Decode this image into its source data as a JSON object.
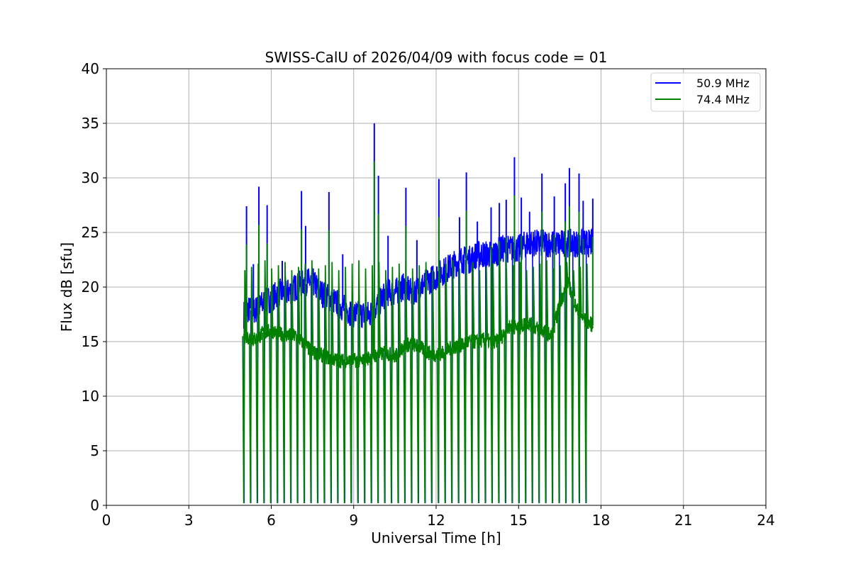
{
  "chart_data": {
    "type": "line",
    "title": "SWISS-CalU of 2026/04/09 with focus code = 01",
    "xlabel": "Universal Time [h]",
    "ylabel": "Flux dB [sfu]",
    "xlim": [
      0,
      24
    ],
    "ylim": [
      0,
      40
    ],
    "xticks": [
      0,
      3,
      6,
      9,
      12,
      15,
      18,
      21,
      24
    ],
    "yticks": [
      0,
      5,
      10,
      15,
      20,
      25,
      30,
      35,
      40
    ],
    "grid": true,
    "legend_position": "top-right",
    "series": [
      {
        "name": "50.9 MHz",
        "color": "#0000ff",
        "x": [
          5.0,
          5.1,
          5.3,
          5.5,
          5.7,
          6.0,
          6.3,
          6.6,
          6.9,
          7.2,
          7.5,
          7.8,
          8.1,
          8.4,
          8.7,
          9.0,
          9.3,
          9.6,
          9.9,
          10.2,
          10.5,
          10.8,
          11.1,
          11.4,
          11.7,
          12.0,
          12.3,
          12.6,
          12.9,
          13.2,
          13.5,
          13.8,
          14.1,
          14.4,
          14.7,
          15.0,
          15.3,
          15.6,
          15.9,
          16.2,
          16.5,
          16.8,
          17.1,
          17.4,
          17.7
        ],
        "values": [
          17.5,
          18.0,
          17.8,
          18.0,
          18.5,
          19.0,
          19.5,
          19.5,
          20.0,
          20.5,
          20.5,
          19.5,
          19.0,
          18.5,
          18.0,
          17.5,
          17.5,
          17.5,
          18.5,
          19.5,
          19.5,
          20.0,
          19.5,
          20.0,
          20.5,
          21.0,
          21.5,
          22.0,
          22.5,
          22.5,
          23.0,
          23.0,
          23.0,
          23.5,
          23.5,
          23.5,
          24.0,
          24.0,
          24.0,
          24.0,
          24.0,
          24.0,
          24.0,
          24.0,
          24.0
        ]
      },
      {
        "name": "74.4 MHz",
        "color": "#008000",
        "x": [
          5.0,
          5.1,
          5.3,
          5.5,
          5.7,
          6.0,
          6.3,
          6.6,
          6.9,
          7.2,
          7.5,
          7.8,
          8.1,
          8.4,
          8.7,
          9.0,
          9.3,
          9.6,
          9.9,
          10.2,
          10.5,
          10.8,
          11.1,
          11.4,
          11.7,
          12.0,
          12.3,
          12.6,
          12.9,
          13.2,
          13.5,
          13.8,
          14.1,
          14.4,
          14.7,
          15.0,
          15.3,
          15.6,
          15.9,
          16.2,
          16.5,
          16.8,
          17.1,
          17.4,
          17.7
        ],
        "values": [
          15.5,
          15.5,
          15.2,
          15.3,
          15.8,
          16.0,
          15.7,
          15.6,
          15.5,
          14.8,
          14.0,
          13.8,
          13.5,
          13.3,
          13.2,
          13.3,
          13.2,
          13.6,
          13.8,
          14.0,
          13.6,
          14.6,
          14.8,
          14.5,
          14.0,
          13.8,
          14.0,
          14.5,
          14.6,
          15.0,
          15.0,
          15.2,
          14.8,
          15.5,
          16.5,
          16.2,
          16.8,
          16.3,
          16.0,
          15.5,
          18.5,
          20.5,
          18.0,
          17.0,
          16.5
        ]
      }
    ],
    "spikes": {
      "description_values_only": true,
      "blue_peaks": [
        {
          "x": 5.1,
          "y": 27.4
        },
        {
          "x": 5.35,
          "y": 22.1
        },
        {
          "x": 5.55,
          "y": 29.2
        },
        {
          "x": 5.85,
          "y": 27.5
        },
        {
          "x": 6.4,
          "y": 22.4
        },
        {
          "x": 7.1,
          "y": 28.8
        },
        {
          "x": 7.25,
          "y": 25.6
        },
        {
          "x": 8.1,
          "y": 28.7
        },
        {
          "x": 8.6,
          "y": 23.0
        },
        {
          "x": 9.75,
          "y": 35.0
        },
        {
          "x": 9.9,
          "y": 30.2
        },
        {
          "x": 10.25,
          "y": 24.7
        },
        {
          "x": 10.9,
          "y": 29.1
        },
        {
          "x": 11.3,
          "y": 24.3
        },
        {
          "x": 12.1,
          "y": 29.9
        },
        {
          "x": 12.85,
          "y": 26.4
        },
        {
          "x": 13.1,
          "y": 30.5
        },
        {
          "x": 13.5,
          "y": 26.0
        },
        {
          "x": 14.0,
          "y": 27.3
        },
        {
          "x": 14.3,
          "y": 27.7
        },
        {
          "x": 14.55,
          "y": 28.0
        },
        {
          "x": 14.85,
          "y": 31.9
        },
        {
          "x": 15.1,
          "y": 28.2
        },
        {
          "x": 15.4,
          "y": 26.9
        },
        {
          "x": 15.85,
          "y": 30.4
        },
        {
          "x": 16.3,
          "y": 28.3
        },
        {
          "x": 16.7,
          "y": 29.5
        },
        {
          "x": 16.85,
          "y": 30.9
        },
        {
          "x": 17.2,
          "y": 30.4
        },
        {
          "x": 17.35,
          "y": 27.9
        },
        {
          "x": 17.7,
          "y": 28.1
        }
      ],
      "green_spike_x_start": 5.0,
      "green_spike_x_end": 17.45,
      "green_spike_count": 52,
      "green_spike_top": 22.0
    },
    "legend": [
      {
        "label": "50.9 MHz",
        "color": "#0000ff"
      },
      {
        "label": "74.4 MHz",
        "color": "#008000"
      }
    ]
  }
}
